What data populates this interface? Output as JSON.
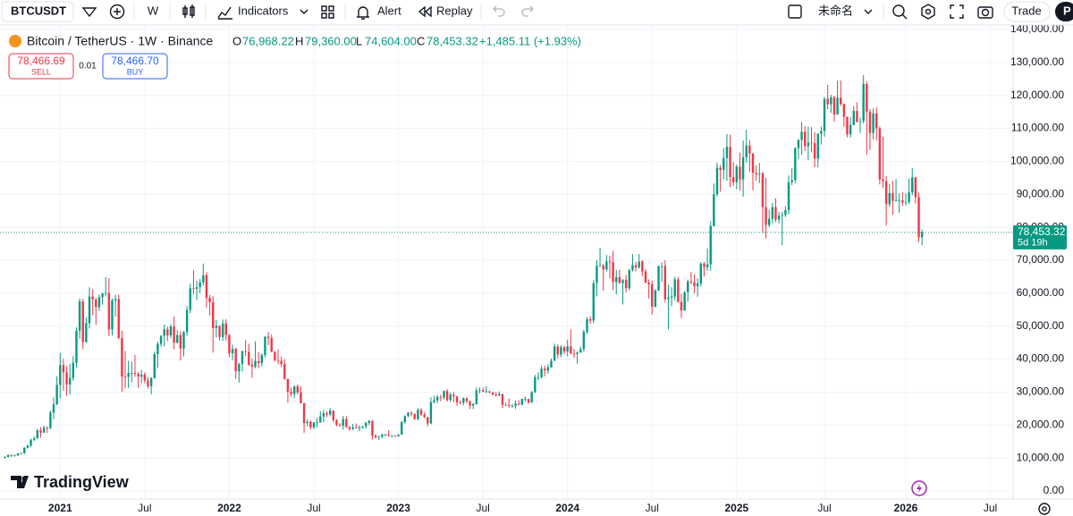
{
  "toolbar": {
    "symbol": "BTCUSDT",
    "interval": "W",
    "indicators": "Indicators",
    "alert": "Alert",
    "replay": "Replay",
    "layout_name": "未命名",
    "trade": "Trade",
    "profile": "P"
  },
  "legend": {
    "title": "Bitcoin / TetherUS · 1W · Binance",
    "open_label": "O",
    "open": "76,968.22",
    "high_label": "H",
    "high": "79,360.00",
    "low_label": "L",
    "low": "74,604.00",
    "close_label": "C",
    "close": "78,453.32",
    "change": "+1,485.11 (+1.93%)"
  },
  "order_panel": {
    "sell_price": "78,466.69",
    "sell": "SELL",
    "quantity": 0.01,
    "buy_price": "78,466.70",
    "buy": "BUY"
  },
  "price_tag": {
    "price": "78,453.32",
    "countdown": "5d 19h"
  },
  "watermark": "TradingView",
  "chart_data": {
    "type": "candlestick",
    "open": [
      10200,
      10300,
      10900,
      10700,
      10800,
      11400,
      11400,
      13100,
      13800,
      15500,
      16000,
      18400,
      17700,
      19200,
      19100,
      23800,
      26300,
      32200,
      38200,
      36000,
      32300,
      34300,
      38900,
      48600,
      57500,
      45200,
      50900,
      59000,
      58100,
      55800,
      58800,
      60000,
      60100,
      49000,
      57800,
      58200,
      46400,
      34700,
      34600,
      35800,
      35800,
      35500,
      34700,
      35300,
      33500,
      31800,
      34300,
      41500,
      44600,
      47100,
      49000,
      47200,
      49900,
      45000,
      47300,
      43200,
      48200,
      54900,
      61500,
      61300,
      61800,
      63300,
      65500,
      58600,
      57300,
      49400,
      50100,
      46700,
      50800,
      47300,
      41800,
      43100,
      36300,
      38500,
      42400,
      42200,
      38300,
      37700,
      39400,
      38800,
      41300,
      46800,
      46400,
      42200,
      39700,
      39500,
      38500,
      34000,
      30100,
      29400,
      31800,
      29900,
      26600,
      20600,
      21000,
      19300,
      20800,
      20800,
      22600,
      23600,
      23200,
      24400,
      21500,
      20000,
      19800,
      21800,
      19400,
      18800,
      19300,
      19100,
      19200,
      19600,
      20600,
      21300,
      16800,
      16300,
      16500,
      17100,
      17100,
      16800,
      16800,
      16600,
      17100,
      20900,
      22700,
      23700,
      23400,
      21800,
      24600,
      23200,
      22400,
      20500,
      26900,
      27500,
      28500,
      28300,
      30300,
      27600,
      29200,
      28700,
      26900,
      26800,
      28100,
      27200,
      25900,
      26300,
      30500,
      30600,
      30200,
      30200,
      29900,
      29300,
      29000,
      29400,
      26100,
      26100,
      25800,
      25800,
      26500,
      26200,
      27900,
      27900,
      26800,
      30000,
      34500,
      34500,
      37100,
      36600,
      37500,
      39500,
      43800,
      41400,
      43600,
      42300,
      43900,
      41700,
      41600,
      42000,
      43000,
      48300,
      52100,
      51700,
      63100,
      68300,
      68400,
      67200,
      69600,
      69400,
      63400,
      64900,
      63100,
      64000,
      61500,
      67000,
      68500,
      67800,
      69600,
      66600,
      63200,
      62700,
      55900,
      60800,
      68200,
      68200,
      58200,
      58700,
      59000,
      64200,
      57300,
      54800,
      60300,
      63600,
      63300,
      62100,
      63000,
      69000,
      67900,
      68800,
      80400,
      90000,
      98000,
      97400,
      101000,
      104400,
      95200,
      93700,
      98400,
      94500,
      101200,
      104800,
      102400,
      96500,
      96100,
      96300,
      86100,
      80700,
      82600,
      86100,
      82300,
      83500,
      83700,
      85200,
      93700,
      94300,
      104000,
      106500,
      109000,
      104600,
      105700,
      105500,
      100900,
      108400,
      109200,
      119000,
      117300,
      119400,
      114200,
      119300,
      117400,
      113500,
      108200,
      111100,
      115300,
      112000,
      112200,
      123500,
      115000,
      108600,
      114500,
      110000,
      94500,
      94000,
      87000,
      90400,
      88000,
      88200,
      88200,
      87500,
      87700,
      90600,
      95100,
      89100,
      76968.22
    ],
    "high": [
      10600,
      11100,
      11200,
      11000,
      11500,
      11700,
      13300,
      14000,
      15900,
      16500,
      18800,
      19400,
      19900,
      19600,
      24300,
      28400,
      34800,
      41900,
      40100,
      37900,
      38500,
      40900,
      49700,
      58400,
      58300,
      52600,
      61800,
      61200,
      58600,
      59600,
      60100,
      64900,
      64600,
      58400,
      59500,
      59600,
      48600,
      42500,
      39500,
      39300,
      41300,
      36100,
      36700,
      36000,
      34600,
      34500,
      42300,
      45300,
      47200,
      50500,
      49800,
      50600,
      52900,
      48800,
      48500,
      48500,
      56100,
      62900,
      67000,
      63700,
      64300,
      69000,
      66400,
      59500,
      59100,
      51900,
      50200,
      52000,
      52100,
      47600,
      44400,
      43500,
      38900,
      42600,
      45800,
      44700,
      40200,
      45400,
      42200,
      41700,
      47000,
      48200,
      47400,
      42400,
      42900,
      40800,
      40000,
      34100,
      31400,
      31900,
      32300,
      31700,
      26800,
      21800,
      21400,
      20900,
      22200,
      24200,
      24600,
      24200,
      25200,
      24400,
      21800,
      20600,
      22800,
      22700,
      19700,
      20400,
      20500,
      19900,
      19700,
      21000,
      21500,
      21400,
      17200,
      16800,
      17400,
      17400,
      18400,
      17000,
      16900,
      17200,
      21200,
      23000,
      24000,
      24200,
      23500,
      25200,
      25100,
      23900,
      22500,
      28400,
      28900,
      29100,
      29200,
      30500,
      30900,
      29900,
      30000,
      28700,
      27500,
      28400,
      28400,
      27400,
      26800,
      31400,
      31400,
      31400,
      31800,
      30400,
      30000,
      30000,
      30200,
      29500,
      26800,
      28100,
      26400,
      27400,
      27500,
      28000,
      28600,
      28000,
      30300,
      35200,
      36000,
      38000,
      38000,
      38400,
      40200,
      44700,
      44400,
      44300,
      44100,
      45900,
      49000,
      43100,
      42300,
      43800,
      48900,
      52800,
      53000,
      64000,
      70100,
      73800,
      68900,
      71600,
      71300,
      72800,
      67100,
      67100,
      64300,
      65500,
      67400,
      71900,
      69500,
      71900,
      70000,
      67300,
      64200,
      63800,
      61300,
      68400,
      69300,
      70000,
      62600,
      61800,
      65000,
      64900,
      59800,
      60600,
      64100,
      66500,
      65700,
      64500,
      69400,
      69500,
      73600,
      81800,
      93300,
      99600,
      98900,
      104000,
      108300,
      108100,
      99800,
      99000,
      102700,
      106300,
      109600,
      106400,
      102500,
      98800,
      99500,
      96900,
      95000,
      85300,
      87400,
      88800,
      84600,
      84700,
      86400,
      95700,
      97900,
      104300,
      106700,
      111900,
      110700,
      110500,
      110400,
      108900,
      108500,
      110600,
      119500,
      123200,
      120200,
      119900,
      124400,
      124500,
      117600,
      113600,
      113400,
      116800,
      117900,
      113300,
      126200,
      124300,
      115900,
      116100,
      116400,
      110600,
      107500,
      95600,
      93100,
      94100,
      94600,
      90300,
      90600,
      90300,
      94800,
      97900,
      95300,
      90500,
      79360
    ],
    "low": [
      9900,
      10200,
      10300,
      10400,
      10600,
      11200,
      11300,
      12900,
      13200,
      15100,
      15800,
      16200,
      17600,
      17600,
      18700,
      21800,
      26000,
      28100,
      30400,
      28800,
      29200,
      33400,
      37400,
      46200,
      43000,
      44900,
      49300,
      53300,
      50400,
      54600,
      56500,
      59000,
      47000,
      47200,
      52900,
      46000,
      30000,
      31100,
      31200,
      33000,
      34600,
      31300,
      32700,
      32700,
      31100,
      29300,
      34000,
      37400,
      43800,
      43900,
      45500,
      46400,
      43000,
      44700,
      39600,
      40800,
      47100,
      53900,
      59600,
      58000,
      60000,
      62300,
      55600,
      53300,
      42000,
      46600,
      45600,
      45500,
      45700,
      40600,
      39700,
      34000,
      32900,
      36200,
      40900,
      37900,
      34300,
      37200,
      37200,
      37700,
      40500,
      44200,
      42100,
      39200,
      38500,
      37600,
      33700,
      26700,
      28600,
      28100,
      29300,
      26500,
      17600,
      19600,
      18700,
      18800,
      19200,
      20700,
      20800,
      22400,
      22700,
      20800,
      19600,
      19500,
      18600,
      19300,
      18200,
      18500,
      18900,
      18200,
      18900,
      18900,
      20000,
      15600,
      15800,
      15500,
      16000,
      16700,
      16500,
      16300,
      16400,
      16500,
      17000,
      20400,
      22400,
      22600,
      21600,
      21500,
      22800,
      22100,
      19600,
      20200,
      26600,
      26600,
      27200,
      27800,
      27100,
      27000,
      26900,
      25800,
      26300,
      26000,
      26600,
      24800,
      24800,
      26200,
      29600,
      29900,
      29700,
      29600,
      28900,
      28600,
      28700,
      25200,
      25800,
      25300,
      25300,
      24900,
      26000,
      26000,
      27100,
      26500,
      26800,
      29700,
      33500,
      34100,
      34800,
      35600,
      37400,
      39500,
      40200,
      40600,
      41500,
      40800,
      41500,
      40300,
      38600,
      41900,
      42300,
      47600,
      50700,
      50900,
      59000,
      68000,
      60800,
      66600,
      64500,
      60900,
      59700,
      62800,
      56600,
      60200,
      60800,
      66600,
      66600,
      67500,
      65100,
      63100,
      58400,
      53500,
      55700,
      60700,
      63500,
      57200,
      49000,
      56100,
      57800,
      57200,
      52500,
      54600,
      57500,
      62700,
      60000,
      58900,
      62000,
      65100,
      66800,
      66800,
      80200,
      89300,
      90800,
      94500,
      94100,
      92200,
      92500,
      91500,
      91200,
      89300,
      99600,
      96800,
      91200,
      94100,
      93400,
      78200,
      76600,
      80000,
      81200,
      81600,
      81200,
      74500,
      83100,
      83900,
      92800,
      93400,
      100700,
      102000,
      103100,
      100400,
      102700,
      98200,
      98200,
      105100,
      107500,
      115800,
      114700,
      112000,
      114300,
      116800,
      110500,
      107300,
      107300,
      110900,
      111800,
      108600,
      111500,
      102000,
      103500,
      106600,
      106300,
      93000,
      92000,
      80500,
      86100,
      83800,
      87800,
      84400,
      86400,
      86600,
      87000,
      89700,
      87200,
      75500,
      74604
    ],
    "close": [
      10300,
      10900,
      10700,
      10800,
      11400,
      11400,
      13100,
      13800,
      15500,
      16000,
      18400,
      17700,
      19200,
      19100,
      23800,
      26300,
      32200,
      38200,
      36000,
      32300,
      34300,
      38900,
      48600,
      57500,
      45200,
      50900,
      59000,
      58100,
      55800,
      58800,
      60000,
      60100,
      49000,
      57800,
      58200,
      46400,
      34700,
      34600,
      35800,
      35800,
      35500,
      34700,
      35300,
      33500,
      31800,
      34300,
      41500,
      44600,
      47100,
      49000,
      47200,
      49900,
      45000,
      47300,
      43200,
      48200,
      54900,
      61500,
      61300,
      61800,
      63300,
      65500,
      58600,
      57300,
      49400,
      50100,
      46700,
      50800,
      47300,
      41800,
      43100,
      36300,
      38500,
      42400,
      42200,
      38300,
      37700,
      39400,
      38800,
      41300,
      46800,
      46400,
      42200,
      39700,
      39500,
      38500,
      34000,
      30100,
      29400,
      31800,
      29900,
      26600,
      20600,
      21000,
      19300,
      20800,
      20800,
      22600,
      23600,
      23200,
      24400,
      21500,
      20000,
      19800,
      21800,
      19400,
      18800,
      19300,
      19100,
      19200,
      19600,
      20600,
      21300,
      16800,
      16300,
      16500,
      17100,
      17100,
      16800,
      16800,
      16600,
      17100,
      20900,
      22700,
      23700,
      23400,
      21800,
      24600,
      23200,
      22400,
      20500,
      26900,
      27500,
      28500,
      28300,
      30300,
      27600,
      29200,
      28700,
      26900,
      26800,
      28100,
      27200,
      25900,
      26300,
      30500,
      30600,
      30200,
      30200,
      29900,
      29300,
      29000,
      29400,
      26100,
      26100,
      25800,
      25800,
      26500,
      26200,
      27900,
      27900,
      26800,
      30000,
      34500,
      34500,
      37100,
      36600,
      37500,
      39500,
      43800,
      41400,
      43600,
      42300,
      43900,
      41700,
      41600,
      42000,
      43000,
      48300,
      52100,
      51700,
      63100,
      68300,
      68400,
      67200,
      69600,
      69400,
      63400,
      64900,
      63100,
      64000,
      61500,
      67000,
      68500,
      67800,
      69600,
      66600,
      63200,
      62700,
      55900,
      60800,
      68200,
      68200,
      58200,
      58700,
      59000,
      64200,
      57300,
      54800,
      60300,
      63600,
      63300,
      62100,
      63000,
      69000,
      67900,
      68800,
      80400,
      90000,
      98000,
      97400,
      101000,
      104400,
      95200,
      93700,
      98400,
      94500,
      101200,
      104800,
      102400,
      96500,
      96100,
      96300,
      86100,
      80700,
      82600,
      86100,
      82300,
      83500,
      83700,
      85200,
      93700,
      94300,
      104000,
      106500,
      109000,
      104600,
      105700,
      105500,
      100900,
      108400,
      109200,
      119000,
      117300,
      119400,
      114200,
      119300,
      117400,
      113500,
      108200,
      111100,
      115300,
      112000,
      112200,
      123500,
      115000,
      108600,
      114500,
      110000,
      94500,
      94000,
      87000,
      90400,
      88000,
      88200,
      88200,
      87500,
      87700,
      90600,
      95100,
      89100,
      76968.22,
      78453.32
    ],
    "up_color": "#089981",
    "down_color": "#f23645",
    "xlim": [
      -1.5,
      310
    ],
    "xticks": [
      {
        "value": 17,
        "label": "2021"
      },
      {
        "value": 43,
        "label": "Jul"
      },
      {
        "value": 69,
        "label": "2022"
      },
      {
        "value": 95,
        "label": "Jul"
      },
      {
        "value": 121,
        "label": "2023"
      },
      {
        "value": 147,
        "label": "Jul"
      },
      {
        "value": 173,
        "label": "2024"
      },
      {
        "value": 199,
        "label": "Jul"
      },
      {
        "value": 225,
        "label": "2025"
      },
      {
        "value": 252,
        "label": "Jul"
      },
      {
        "value": 277,
        "label": "2026"
      },
      {
        "value": 303,
        "label": "Jul"
      }
    ],
    "ylim": [
      0,
      140000
    ],
    "yticks": [
      {
        "value": 0,
        "label": "0.00"
      },
      {
        "value": 10000,
        "label": "10,000.00"
      },
      {
        "value": 20000,
        "label": "20,000.00"
      },
      {
        "value": 30000,
        "label": "30,000.00"
      },
      {
        "value": 40000,
        "label": "40,000.00"
      },
      {
        "value": 50000,
        "label": "50,000.00"
      },
      {
        "value": 60000,
        "label": "60,000.00"
      },
      {
        "value": 70000,
        "label": "70,000.00"
      },
      {
        "value": 80000,
        "label": "80,000.00"
      },
      {
        "value": 90000,
        "label": "90,000.00"
      },
      {
        "value": 100000,
        "label": "100,000.00"
      },
      {
        "value": 110000,
        "label": "110,000.00"
      },
      {
        "value": 120000,
        "label": "120,000.00"
      },
      {
        "value": 130000,
        "label": "130,000.00"
      },
      {
        "value": 140000,
        "label": "140,000.00"
      }
    ],
    "grid": true
  }
}
